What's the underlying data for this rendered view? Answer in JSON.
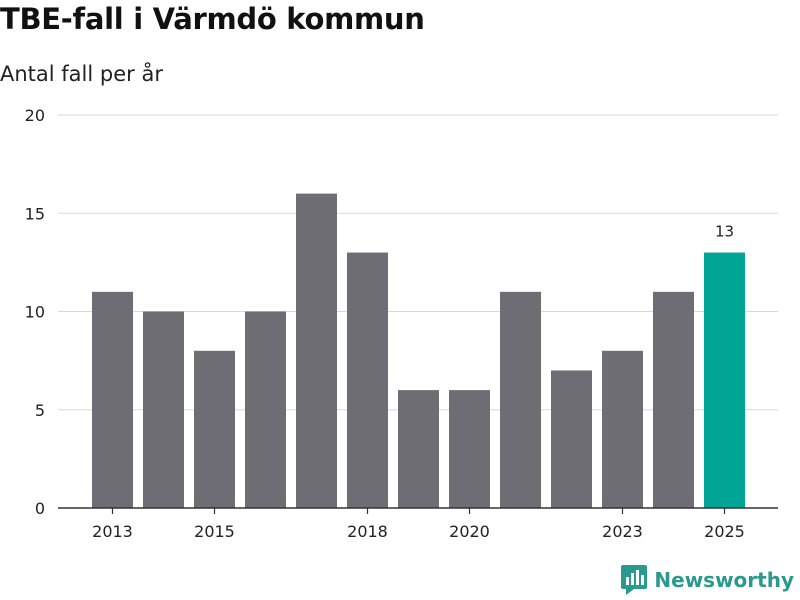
{
  "header": {
    "title": "TBE-fall i Värmdö kommun",
    "subtitle": "Antal fall per år"
  },
  "brand": {
    "name": "Newsworthy",
    "logo_icon": "newsworthy-logo-icon"
  },
  "colors": {
    "bar": "#6e6d73",
    "highlight": "#00a596",
    "gridline": "#d9d9d9",
    "axis": "#333333",
    "brand": "#2a9a8e"
  },
  "chart_data": {
    "type": "bar",
    "title": "TBE-fall i Värmdö kommun",
    "subtitle": "Antal fall per år",
    "xlabel": "",
    "ylabel": "",
    "categories": [
      "2013",
      "2014",
      "2015",
      "2016",
      "2017",
      "2018",
      "2019",
      "2020",
      "2021",
      "2022",
      "2023",
      "2024",
      "2025"
    ],
    "values": [
      11,
      10,
      8,
      10,
      16,
      13,
      6,
      6,
      11,
      7,
      8,
      11,
      13
    ],
    "ylim": [
      0,
      20
    ],
    "yticks": [
      0,
      5,
      10,
      15,
      20
    ],
    "xtick_labels": [
      "2013",
      "2015",
      "2018",
      "2020",
      "2023",
      "2025"
    ],
    "highlight": {
      "category": "2025",
      "label": "13"
    },
    "grid": true,
    "legend": "none"
  }
}
